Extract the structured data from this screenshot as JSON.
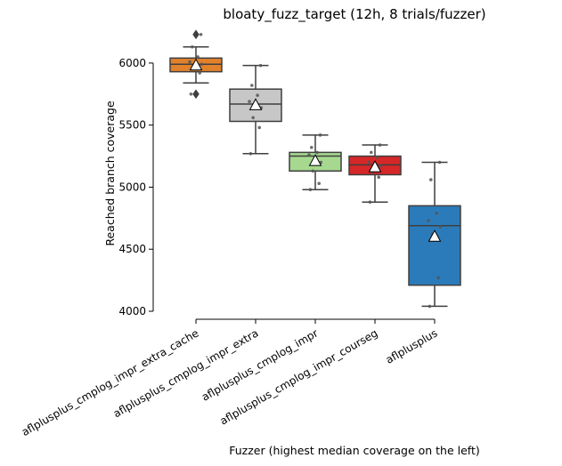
{
  "chart_data": {
    "type": "box",
    "title": "bloaty_fuzz_target (12h, 8 trials/fuzzer)",
    "xlabel": "Fuzzer (highest median coverage on the left)",
    "ylabel": "Reached branch coverage",
    "ylim": [
      4000,
      6250
    ],
    "yticks": [
      4000,
      4500,
      5000,
      5500,
      6000
    ],
    "grid": false,
    "categories": [
      "aflplusplus_cmplog_impr_extra_cache",
      "aflplusplus_cmplog_impr_extra",
      "aflplusplus_cmplog_impr",
      "aflplusplus_cmplog_impr_courseg",
      "aflplusplus"
    ],
    "boxes": [
      {
        "name": "aflplusplus_cmplog_impr_extra_cache",
        "color": "#e1812c",
        "whisker_low": 5840,
        "q1": 5930,
        "median": 5990,
        "q3": 6040,
        "whisker_high": 6130,
        "mean": 5980,
        "outliers": [
          5750,
          6230
        ],
        "points": [
          5750,
          5920,
          5960,
          5990,
          6010,
          6050,
          6130,
          6230
        ]
      },
      {
        "name": "aflplusplus_cmplog_impr_extra",
        "color": "#c7c7c7",
        "whisker_low": 5270,
        "q1": 5530,
        "median": 5670,
        "q3": 5790,
        "whisker_high": 5980,
        "mean": 5660,
        "outliers": [],
        "points": [
          5270,
          5480,
          5560,
          5640,
          5690,
          5740,
          5820,
          5980
        ]
      },
      {
        "name": "aflplusplus_cmplog_impr",
        "color": "#a6d98f",
        "whisker_low": 4980,
        "q1": 5130,
        "median": 5250,
        "q3": 5280,
        "whisker_high": 5420,
        "mean": 5210,
        "outliers": [],
        "points": [
          4980,
          5030,
          5130,
          5200,
          5260,
          5280,
          5320,
          5420
        ]
      },
      {
        "name": "aflplusplus_cmplog_impr_courseg",
        "color": "#d62728",
        "whisker_low": 4880,
        "q1": 5100,
        "median": 5180,
        "q3": 5250,
        "whisker_high": 5340,
        "mean": 5160,
        "outliers": [],
        "points": [
          4880,
          5080,
          5120,
          5170,
          5200,
          5240,
          5280,
          5340
        ]
      },
      {
        "name": "aflplusplus",
        "color": "#2b7bba",
        "whisker_low": 4040,
        "q1": 4210,
        "median": 4690,
        "q3": 4850,
        "whisker_high": 5200,
        "mean": 4600,
        "outliers": [],
        "points": [
          4040,
          4270,
          4620,
          4680,
          4730,
          4790,
          5060,
          5200
        ]
      }
    ]
  }
}
